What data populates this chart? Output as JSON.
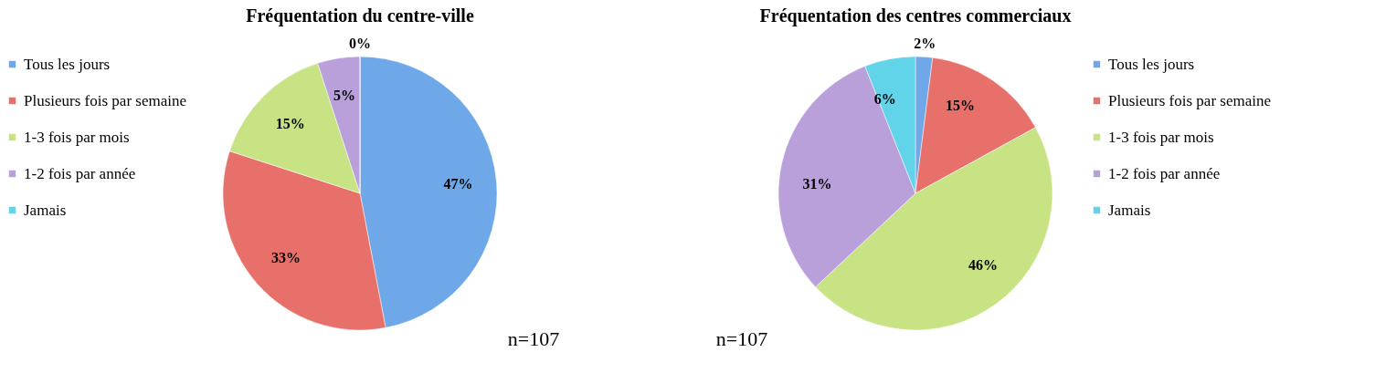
{
  "chart_data": [
    {
      "type": "pie",
      "title": "Fréquentation du centre-ville",
      "categories": [
        "Tous les jours",
        "Plusieurs fois par semaine",
        "1-3 fois par mois",
        "1-2 fois par année",
        "Jamais"
      ],
      "values": [
        47,
        33,
        15,
        5,
        0
      ],
      "colors": [
        "#6fa8e8",
        "#e8706a",
        "#c8e384",
        "#b9a0db",
        "#62d4ea"
      ],
      "value_labels": [
        "47%",
        "33%",
        "15%",
        "5%",
        "0%"
      ],
      "legend": "left",
      "annotations": [
        "n=107"
      ]
    },
    {
      "type": "pie",
      "title": "Fréquentation des centres commerciaux",
      "categories": [
        "Tous les jours",
        "Plusieurs fois par semaine",
        "1-3 fois par mois",
        "1-2 fois par année",
        "Jamais"
      ],
      "values": [
        2,
        15,
        46,
        31,
        6
      ],
      "colors": [
        "#6fa8e8",
        "#e8706a",
        "#c8e384",
        "#b9a0db",
        "#62d4ea"
      ],
      "value_labels": [
        "2%",
        "15%",
        "46%",
        "31%",
        "6%"
      ],
      "legend": "right",
      "annotations": [
        "n=107"
      ]
    }
  ]
}
